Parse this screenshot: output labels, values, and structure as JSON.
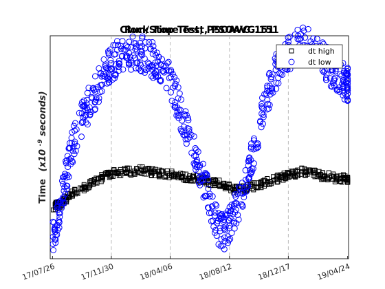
{
  "chart_data": {
    "type": "scatter",
    "titles": [
      "Run/Stop Test, PSOAVG.151",
      "Clock Time Test, PSOAVG.151"
    ],
    "ylabel": {
      "prefix": "Time",
      "unit_main": "(x10",
      "unit_exp": "-9",
      "unit_tail": " seconds)"
    },
    "x_ticks": [
      "17/07/26",
      "17/11/30",
      "18/04/06",
      "18/08/12",
      "18/12/17",
      "19/04/24"
    ],
    "x_tick_dates": [
      "2017-07-26",
      "2017-11-30",
      "2018-04-06",
      "2018-08-12",
      "2018-12-17",
      "2019-04-24"
    ],
    "xlim": [
      "2017-07-21",
      "2019-04-26"
    ],
    "ylim": [
      0,
      1
    ],
    "y_tick_labels": "none",
    "grid": "vertical dashed at x ticks",
    "legend": {
      "placement": "top-right",
      "entries": [
        {
          "label": "dt high",
          "marker": "square",
          "color": "#000000"
        },
        {
          "label": "dt low",
          "marker": "circle",
          "color": "#0000ff"
        }
      ]
    },
    "series": [
      {
        "name": "dt high",
        "marker": "square",
        "color": "#000000",
        "note": "approximate trend; markers sampled",
        "x": [
          "2017-07-26",
          "2017-08-05",
          "2017-08-15",
          "2017-08-25",
          "2017-09-05",
          "2017-09-20",
          "2017-10-05",
          "2017-10-20",
          "2017-11-05",
          "2017-11-20",
          "2017-11-30",
          "2017-12-15",
          "2018-01-01",
          "2018-01-15",
          "2018-02-01",
          "2018-02-15",
          "2018-03-01",
          "2018-03-15",
          "2018-04-06",
          "2018-04-20",
          "2018-05-05",
          "2018-05-20",
          "2018-06-05",
          "2018-06-20",
          "2018-07-05",
          "2018-07-20",
          "2018-08-01",
          "2018-08-12",
          "2018-08-25",
          "2018-09-10",
          "2018-09-25",
          "2018-10-10",
          "2018-10-25",
          "2018-11-10",
          "2018-11-25",
          "2018-12-10",
          "2018-12-17",
          "2019-01-01",
          "2019-01-15",
          "2019-02-01",
          "2019-02-15",
          "2019-03-01",
          "2019-03-15",
          "2019-04-01",
          "2019-04-15",
          "2019-04-24"
        ],
        "y": [
          0.23,
          0.24,
          0.25,
          0.27,
          0.29,
          0.31,
          0.32,
          0.34,
          0.36,
          0.37,
          0.38,
          0.39,
          0.39,
          0.39,
          0.4,
          0.39,
          0.39,
          0.38,
          0.38,
          0.37,
          0.37,
          0.36,
          0.36,
          0.35,
          0.34,
          0.34,
          0.33,
          0.32,
          0.31,
          0.31,
          0.32,
          0.33,
          0.34,
          0.35,
          0.36,
          0.37,
          0.38,
          0.38,
          0.39,
          0.39,
          0.38,
          0.37,
          0.37,
          0.36,
          0.36,
          0.35
        ]
      },
      {
        "name": "dt low",
        "marker": "circle",
        "color": "#0000ff",
        "note": "approximate trend; markers sampled",
        "x": [
          "2017-07-26",
          "2017-08-05",
          "2017-08-15",
          "2017-08-25",
          "2017-09-05",
          "2017-09-20",
          "2017-10-05",
          "2017-10-20",
          "2017-11-05",
          "2017-11-20",
          "2017-11-30",
          "2017-12-15",
          "2018-01-01",
          "2018-01-15",
          "2018-02-01",
          "2018-02-15",
          "2018-03-01",
          "2018-03-15",
          "2018-04-06",
          "2018-04-20",
          "2018-05-05",
          "2018-05-20",
          "2018-06-05",
          "2018-06-20",
          "2018-07-05",
          "2018-07-20",
          "2018-08-01",
          "2018-08-12",
          "2018-08-25",
          "2018-09-10",
          "2018-09-25",
          "2018-10-10",
          "2018-10-25",
          "2018-11-10",
          "2018-11-25",
          "2018-12-10",
          "2018-12-17",
          "2019-01-01",
          "2019-01-15",
          "2019-02-01",
          "2019-02-15",
          "2019-03-01",
          "2019-03-15",
          "2019-04-01",
          "2019-04-15",
          "2019-04-24"
        ],
        "y": [
          0.1,
          0.16,
          0.26,
          0.38,
          0.5,
          0.58,
          0.66,
          0.72,
          0.79,
          0.84,
          0.88,
          0.9,
          0.91,
          0.92,
          0.92,
          0.91,
          0.89,
          0.86,
          0.8,
          0.72,
          0.62,
          0.52,
          0.43,
          0.33,
          0.22,
          0.14,
          0.12,
          0.16,
          0.22,
          0.3,
          0.42,
          0.55,
          0.68,
          0.79,
          0.86,
          0.9,
          0.92,
          0.95,
          0.96,
          0.95,
          0.93,
          0.9,
          0.86,
          0.83,
          0.8,
          0.78
        ]
      }
    ]
  }
}
